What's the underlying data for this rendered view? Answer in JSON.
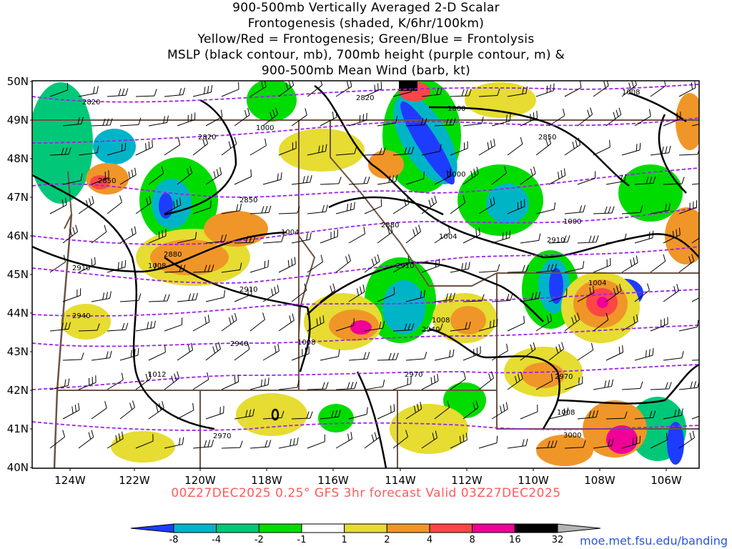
{
  "header": {
    "lines": [
      "900-500mb Vertically Averaged 2-D Scalar",
      "Frontogenesis (shaded, K/6hr/100km)",
      "Yellow/Red = Frontogenesis;  Green/Blue = Frontolysis",
      "MSLP (black contour, mb), 700mb height (purple contour, m) &",
      "900-500mb Mean Wind (barb, kt)"
    ]
  },
  "axes": {
    "lat_labels": [
      "50N",
      "49N",
      "48N",
      "47N",
      "46N",
      "45N",
      "44N",
      "43N",
      "42N",
      "41N",
      "40N"
    ],
    "lon_labels": [
      "124W",
      "122W",
      "120W",
      "118W",
      "116W",
      "114W",
      "112W",
      "110W",
      "108W",
      "106W"
    ]
  },
  "isobars": [
    "1000",
    "1000",
    "1000",
    "1000",
    "1004",
    "1004",
    "1004",
    "1008",
    "1008",
    "1008",
    "1008",
    "1012",
    "1008"
  ],
  "heights": [
    "2820",
    "2820",
    "2820",
    "2850",
    "2850",
    "2850",
    "2880",
    "2880",
    "2910",
    "2910",
    "2910",
    "2910",
    "2940",
    "2940",
    "2940",
    "2970",
    "2970",
    "2970",
    "3000"
  ],
  "colorbar": {
    "labels": [
      "-8",
      "-4",
      "-2",
      "-1",
      "1",
      "2",
      "4",
      "8",
      "16",
      "32"
    ],
    "colors": [
      "#1e3cff",
      "#00b4c8",
      "#00c878",
      "#00dc00",
      "#ffffff",
      "#e6dc32",
      "#f09628",
      "#ff4646",
      "#f00096",
      "#000000",
      "#b4b4b4"
    ]
  },
  "colors": {
    "isobar": "#000000",
    "height": "#a020f0",
    "border": "#6b5444",
    "barb": "#000000"
  },
  "footer": "00Z27DEC2025 0.25° GFS 3hr forecast Valid 03Z27DEC2025",
  "credit": "moe.met.fsu.edu/banding"
}
